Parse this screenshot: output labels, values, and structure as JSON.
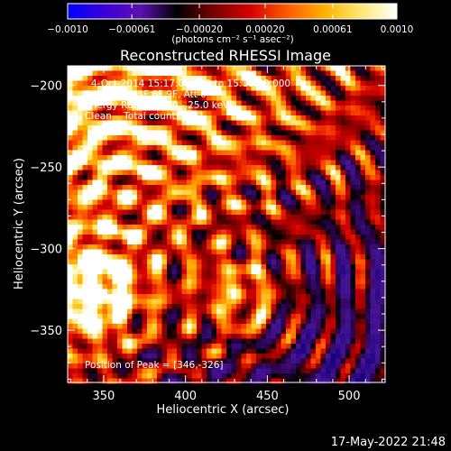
{
  "chart_data": {
    "type": "heatmap",
    "title": "Reconstructed RHESSI Image",
    "xlabel": "Heliocentric X (arcsec)",
    "ylabel": "Heliocentric Y (arcsec)",
    "xlim": [
      328,
      522
    ],
    "ylim": [
      -382,
      -188
    ],
    "x_ticks": [
      350,
      400,
      450,
      500
    ],
    "y_ticks": [
      -200,
      -250,
      -300,
      -350
    ],
    "x_tick_labels": [
      "350",
      "400",
      "450",
      "500"
    ],
    "y_tick_labels": [
      "−200",
      "−250",
      "−300",
      "−350"
    ],
    "colorbar": {
      "range": [
        -0.001,
        0.001
      ],
      "ticks": [
        -0.001,
        -0.00061,
        -0.0002,
        0.0002,
        0.00061,
        0.001
      ],
      "tick_labels": [
        "−0.0010",
        "−0.00061",
        "−0.00020",
        "0.00020",
        "0.00061",
        "0.0010"
      ],
      "label": "(photons cm⁻² s⁻¹ asec⁻²)",
      "colors": [
        "#0000ff",
        "#3a00d8",
        "#5a10b0",
        "#000000",
        "#7a0000",
        "#d40000",
        "#ff5a00",
        "#ffb000",
        "#ffe870",
        "#ffffff"
      ]
    },
    "annotations": {
      "time_range": "4-Oct-2014 15:17:00.000 to 15:19:00.000",
      "detectors": "Detectors: 3F 6F 9F, Att 0",
      "energy": "Energy Range: 12.0 - 25.0 keV",
      "clean": "Clean    Total counts: 581.",
      "peak": "Position of Peak = [346,-326]"
    },
    "peak_position": [
      346,
      -326
    ]
  },
  "timestamp": "17-May-2022 21:48"
}
